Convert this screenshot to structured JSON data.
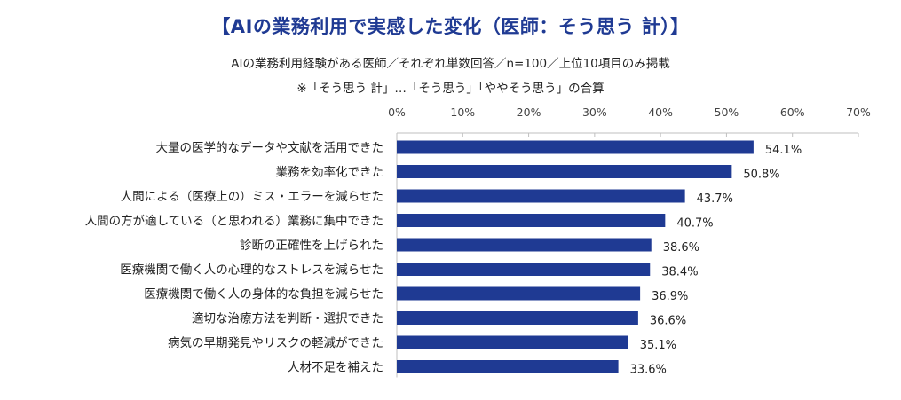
{
  "chart_data": {
    "type": "bar",
    "orientation": "horizontal",
    "title": "【AIの業務利用で実感した変化（医師：そう思う 計）】",
    "subtitle": "AIの業務利用経験がある医師／それぞれ単数回答／n=100／上位10項目のみ掲載",
    "note": "※「そう思う 計」…「そう思う」「ややそう思う」の合算",
    "categories": [
      "大量の医学的なデータや文献を活用できた",
      "業務を効率化できた",
      "人間による（医療上の）ミス・エラーを減らせた",
      "人間の方が適している（と思われる）業務に集中できた",
      "診断の正確性を上げられた",
      "医療機関で働く人の心理的なストレスを減らせた",
      "医療機関で働く人の身体的な負担を減らせた",
      "適切な治療方法を判断・選択できた",
      "病気の早期発見やリスクの軽減ができた",
      "人材不足を補えた"
    ],
    "values": [
      54.1,
      50.8,
      43.7,
      40.7,
      38.6,
      38.4,
      36.9,
      36.6,
      35.1,
      33.6
    ],
    "value_labels": [
      "54.1%",
      "50.8%",
      "43.7%",
      "40.7%",
      "38.6%",
      "38.4%",
      "36.9%",
      "36.6%",
      "35.1%",
      "33.6%"
    ],
    "xlim": [
      0,
      70
    ],
    "ticks": [
      0,
      10,
      20,
      30,
      40,
      50,
      60,
      70
    ],
    "tick_labels": [
      "0%",
      "10%",
      "20%",
      "30%",
      "40%",
      "50%",
      "60%",
      "70%"
    ],
    "bar_color": "#1f3a93",
    "title_color": "#1f3a93"
  }
}
